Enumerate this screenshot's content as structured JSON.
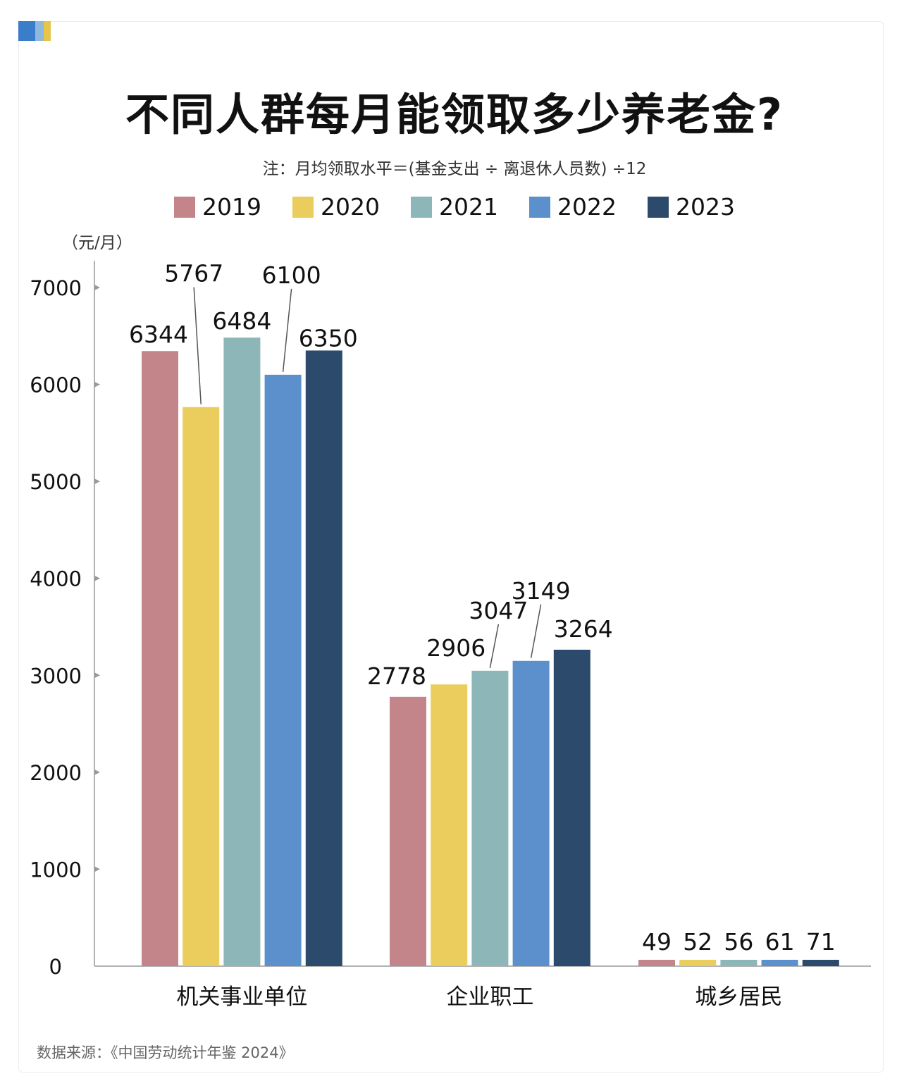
{
  "title": "不同人群每月能领取多少养老金?",
  "note": "注：月均领取水平＝(基金支出 ÷ 离退休人员数) ÷12",
  "source": "数据来源：《中国劳动统计年鉴 2024》",
  "corner_colors": [
    "#3a7dc9",
    "#8fb8df",
    "#e6c54a"
  ],
  "chart_data": {
    "type": "bar",
    "title": "不同人群每月能领取多少养老金?",
    "ylabel": "（元/月）",
    "xlabel": "",
    "ylim": [
      0,
      7000
    ],
    "yticks": [
      0,
      1000,
      2000,
      3000,
      4000,
      5000,
      6000,
      7000
    ],
    "categories": [
      "机关事业单位",
      "企业职工",
      "城乡居民"
    ],
    "legend_position": "top",
    "grid": false,
    "series": [
      {
        "name": "2019",
        "color": "#c4858a",
        "values": [
          6344,
          2778,
          49
        ]
      },
      {
        "name": "2020",
        "color": "#ebcd5e",
        "values": [
          5767,
          2906,
          52
        ]
      },
      {
        "name": "2021",
        "color": "#8db6b8",
        "values": [
          6484,
          3047,
          56
        ]
      },
      {
        "name": "2022",
        "color": "#5b90cc",
        "values": [
          6100,
          3149,
          61
        ]
      },
      {
        "name": "2023",
        "color": "#2c4a6b",
        "values": [
          6350,
          3264,
          71
        ]
      }
    ]
  }
}
